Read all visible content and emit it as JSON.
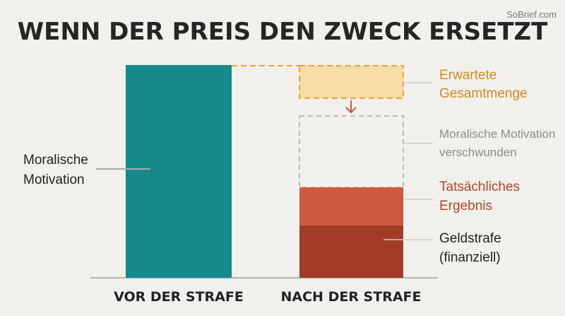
{
  "title": "WENN DER PREIS DEN ZWECK ERSETZT",
  "watermark": "SoBrief.com",
  "colors": {
    "background": "#f1f0ec",
    "teal": "#16898a",
    "expected_fill": "#f7dca6",
    "expected_border": "#e8a334",
    "actual_result": "#cc5a40",
    "fine": "#a13c26",
    "arrow": "#c0573f",
    "dashed_grey": "#b9b9b9",
    "label_dark": "#1f2326",
    "label_orange": "#d08a1e",
    "label_red": "#b2452c",
    "label_grey": "#8a8d90"
  },
  "left_column": {
    "category": "VOR DER STRAFE",
    "label_line1": "Moralische",
    "label_line2": "Motivation"
  },
  "right_column": {
    "category": "NACH DER STRAFE",
    "expected": {
      "line1": "Erwartete",
      "line2": "Gesamtmenge"
    },
    "vanished": {
      "line1": "Moralische Motivation",
      "line2": "verschwunden"
    },
    "actual": {
      "line1": "Tatsächliches",
      "line2": "Ergebnis"
    },
    "fine": {
      "line1": "Geldstrafe",
      "line2": "(finanziell)"
    }
  },
  "icons": {
    "arrow": "arrow-down-icon"
  }
}
